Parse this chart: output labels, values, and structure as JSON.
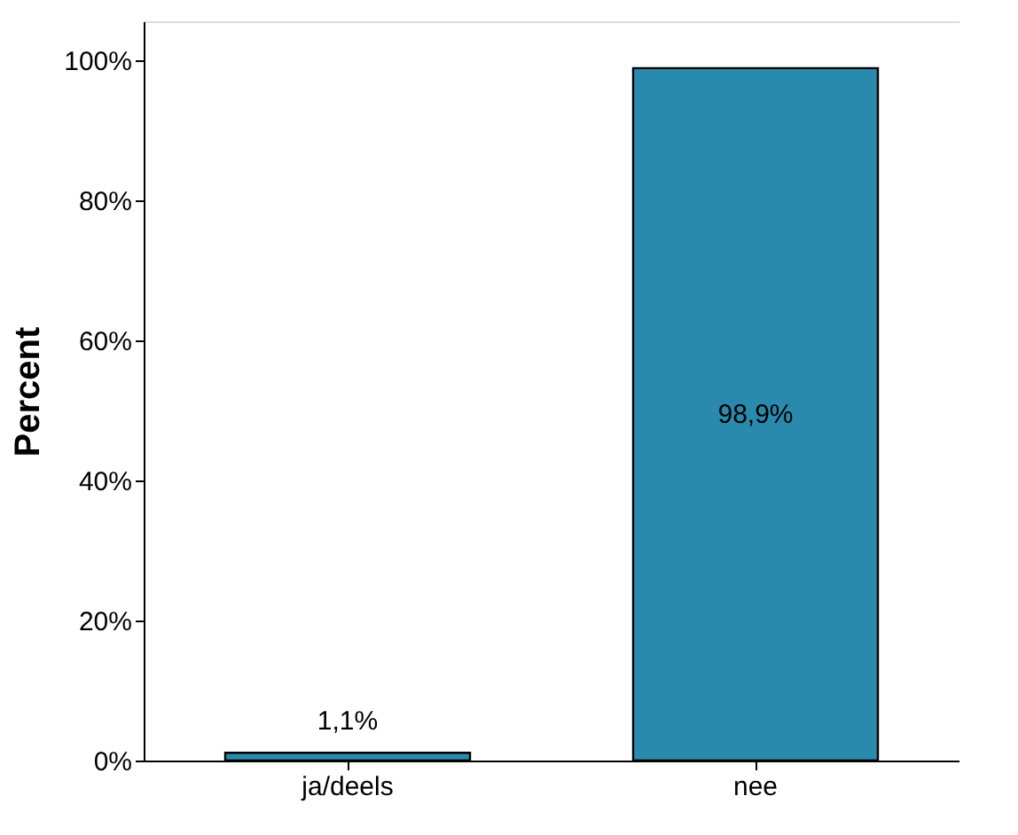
{
  "chart_data": {
    "type": "bar",
    "ylabel": "Percent",
    "categories": [
      "ja/deels",
      "nee"
    ],
    "values": [
      1.1,
      98.9
    ],
    "value_labels": [
      "1,1%",
      "98,9%"
    ],
    "color": "#2a8aad",
    "ylim": [
      0,
      105.6
    ],
    "yticks": [
      {
        "value": 0,
        "label": "0%"
      },
      {
        "value": 20,
        "label": "20%"
      },
      {
        "value": 40,
        "label": "40%"
      },
      {
        "value": 60,
        "label": "60%"
      },
      {
        "value": 80,
        "label": "80%"
      },
      {
        "value": 100,
        "label": "100%"
      }
    ],
    "grid": false
  }
}
